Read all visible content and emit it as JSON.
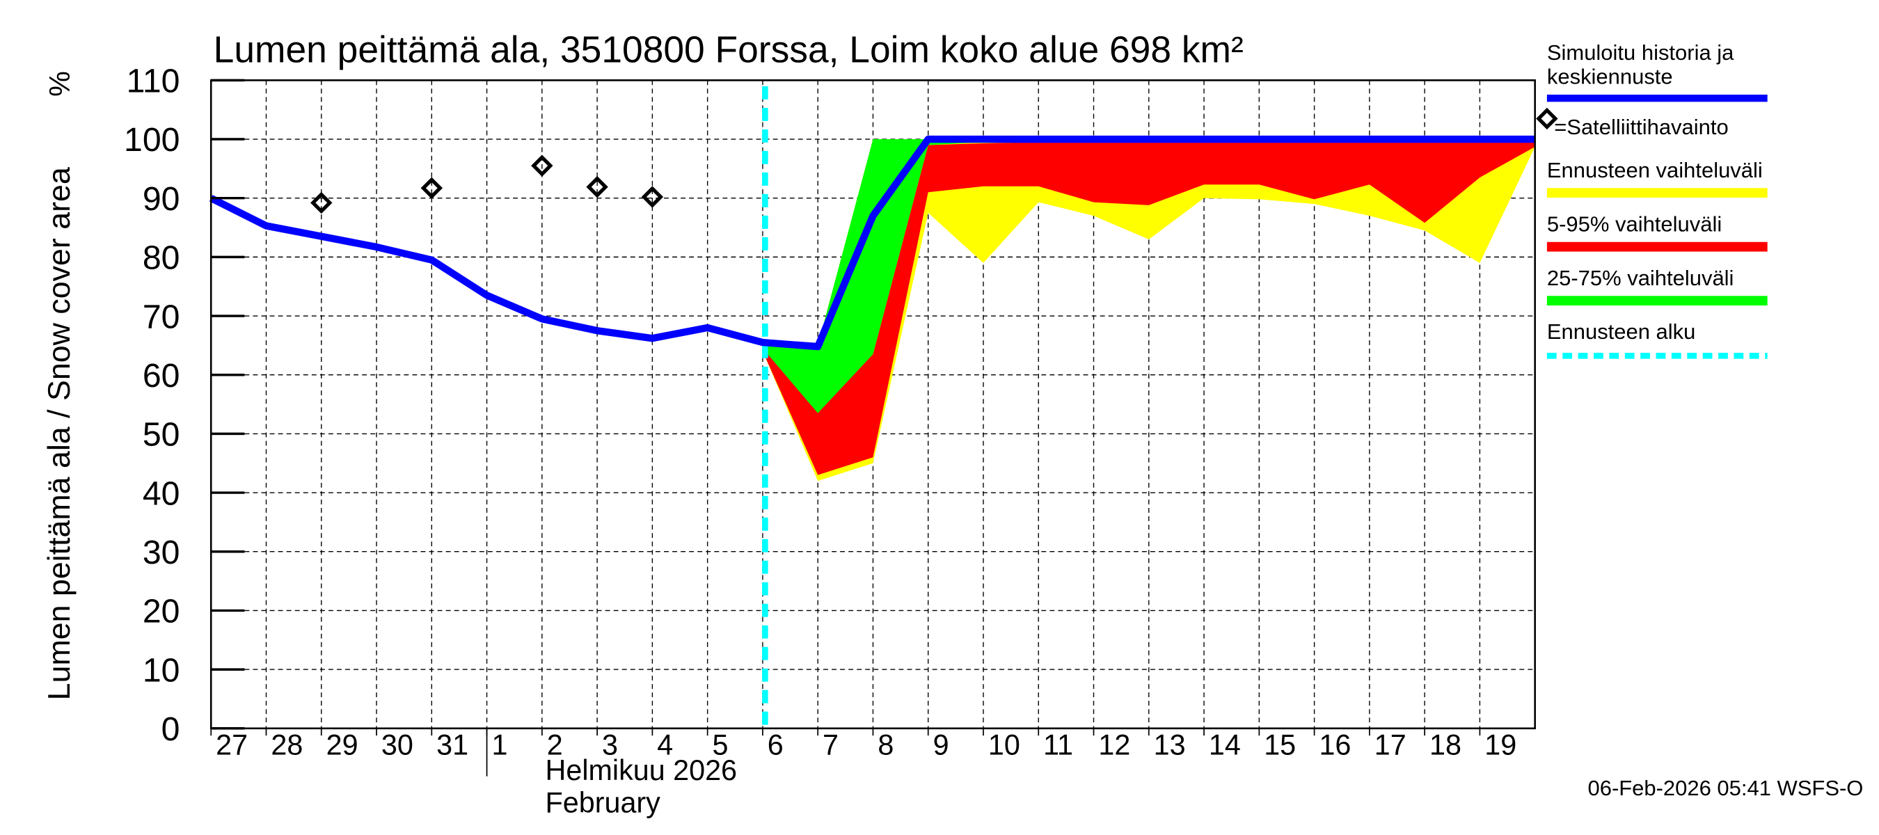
{
  "chart_data": {
    "type": "area",
    "title": "Lumen peittämä ala, 3510800 Forssa, Loim koko alue 698 km²",
    "ylabel": "Lumen peittämä ala / Snow cover area",
    "yunit": "%",
    "ylim": [
      0,
      110
    ],
    "yticks": [
      0,
      10,
      20,
      30,
      40,
      50,
      60,
      70,
      80,
      90,
      100,
      110
    ],
    "grid": true,
    "legend_position": "right",
    "x": [
      "2026-01-27",
      "2026-01-28",
      "2026-01-29",
      "2026-01-30",
      "2026-01-31",
      "2026-02-01",
      "2026-02-02",
      "2026-02-03",
      "2026-02-04",
      "2026-02-05",
      "2026-02-06",
      "2026-02-07",
      "2026-02-08",
      "2026-02-09",
      "2026-02-10",
      "2026-02-11",
      "2026-02-12",
      "2026-02-13",
      "2026-02-14",
      "2026-02-15",
      "2026-02-16",
      "2026-02-17",
      "2026-02-18",
      "2026-02-19",
      "2026-02-20"
    ],
    "xtick_labels": [
      "27",
      "28",
      "29",
      "30",
      "31",
      "1",
      "2",
      "3",
      "4",
      "5",
      "6",
      "7",
      "8",
      "9",
      "10",
      "11",
      "12",
      "13",
      "14",
      "15",
      "16",
      "17",
      "18",
      "19"
    ],
    "month_label_fi": "Helmikuu  2026",
    "month_label_en": "February",
    "forecast_start": "2026-02-06",
    "series": [
      {
        "name": "Simuloitu historia ja keskiennuste",
        "kind": "line",
        "color": "#0000ff",
        "values": [
          90,
          85.3,
          83.5,
          81.7,
          79.5,
          73.5,
          69.5,
          67.5,
          66.2,
          68,
          65.5,
          64.8,
          87,
          100,
          100,
          100,
          100,
          100,
          100,
          100,
          100,
          100,
          100,
          100,
          100
        ]
      },
      {
        "name": "Ennusteen vaihteluväli",
        "kind": "band",
        "color": "#ffff00",
        "lower": [
          null,
          null,
          null,
          null,
          null,
          null,
          null,
          null,
          null,
          null,
          64,
          42,
          45,
          87.5,
          79,
          89.3,
          87,
          83,
          90,
          89.8,
          89,
          87,
          84.5,
          79,
          98.7
        ],
        "upper": [
          null,
          null,
          null,
          null,
          null,
          null,
          null,
          null,
          null,
          null,
          65,
          65,
          100,
          100,
          100,
          100,
          100,
          100,
          100,
          100,
          100,
          100,
          100,
          100,
          100
        ]
      },
      {
        "name": "5-95% vaihteluväli",
        "kind": "band",
        "color": "#ff0000",
        "lower": [
          null,
          null,
          null,
          null,
          null,
          null,
          null,
          null,
          null,
          null,
          64,
          43,
          46,
          91,
          92,
          92,
          89.3,
          88.8,
          92.3,
          92.3,
          89.8,
          92.3,
          85.8,
          93.5,
          98.7
        ],
        "upper": [
          null,
          null,
          null,
          null,
          null,
          null,
          null,
          null,
          null,
          null,
          64.5,
          62,
          63.5,
          99,
          99.3,
          99.5,
          99.5,
          99.5,
          99.5,
          99.5,
          99.5,
          99.5,
          99.5,
          99.5,
          99.5
        ]
      },
      {
        "name": "25-75% vaihteluväli",
        "kind": "band",
        "color": "#00ff00",
        "lower": [
          null,
          null,
          null,
          null,
          null,
          null,
          null,
          null,
          null,
          null,
          64.5,
          53.5,
          63.5,
          99,
          99.5,
          99.8,
          99.8,
          99.8,
          99.8,
          99.8,
          99.8,
          99.8,
          99.8,
          99.8,
          99.8
        ],
        "upper": [
          null,
          null,
          null,
          null,
          null,
          null,
          null,
          null,
          null,
          null,
          65,
          65,
          100,
          100,
          100,
          100,
          100,
          100,
          100,
          100,
          100,
          100,
          100,
          100,
          100
        ]
      },
      {
        "name": "=Satelliittihavainto",
        "kind": "points",
        "color": "#000000",
        "x": [
          "2026-01-29",
          "2026-01-31",
          "2026-02-02",
          "2026-02-03",
          "2026-02-04"
        ],
        "values": [
          89.2,
          91.7,
          95.5,
          91.9,
          90.2
        ]
      },
      {
        "name": "Ennusteen alku",
        "kind": "vline",
        "color": "#00ffff"
      }
    ],
    "legend": [
      {
        "label": "Simuloitu historia ja",
        "label2": "keskiennuste",
        "color": "#0000ff",
        "style": "line"
      },
      {
        "label": "=Satelliittihavainto",
        "color": "#000000",
        "style": "diamond"
      },
      {
        "label": "Ennusteen vaihteluväli",
        "color": "#ffff00",
        "style": "bar"
      },
      {
        "label": "5-95% vaihteluväli",
        "color": "#ff0000",
        "style": "bar"
      },
      {
        "label": "25-75% vaihteluväli",
        "color": "#00ff00",
        "style": "bar"
      },
      {
        "label": "Ennusteen alku",
        "color": "#00ffff",
        "style": "dashed"
      }
    ]
  },
  "footer": "06-Feb-2026 05:41 WSFS-O"
}
